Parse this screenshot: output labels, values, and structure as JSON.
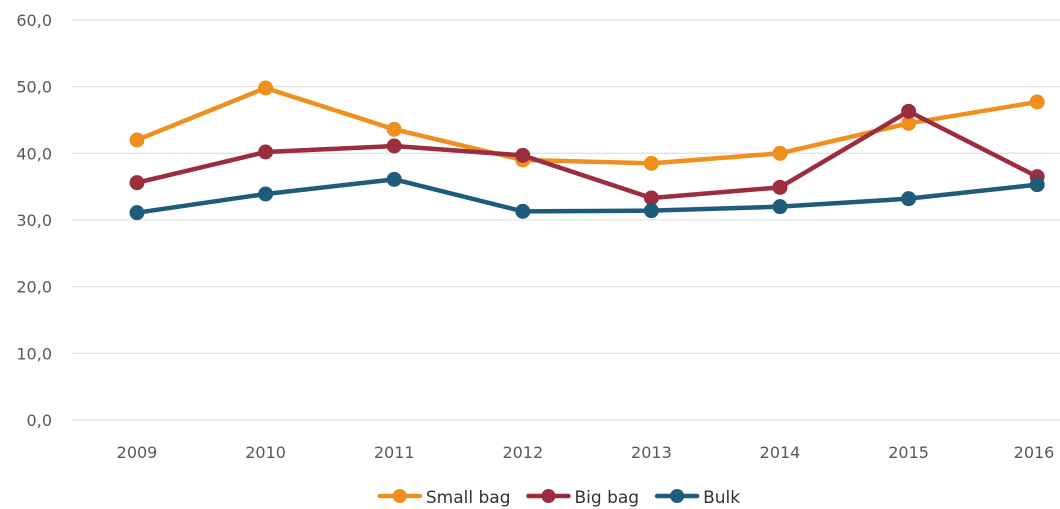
{
  "chart_data": {
    "type": "line",
    "title": "",
    "xlabel": "",
    "ylabel": "",
    "categories": [
      "2009",
      "2010",
      "2011",
      "2012",
      "2013",
      "2014",
      "2015",
      "2016"
    ],
    "y_tick_labels": [
      "0,0",
      "10,0",
      "20,0",
      "30,0",
      "40,0",
      "50,0",
      "60,0"
    ],
    "ylim": [
      0,
      60
    ],
    "grid": "horizontal",
    "legend_position": "bottom",
    "series": [
      {
        "name": "Small bag",
        "color": "#ee8f1e",
        "values": [
          42.0,
          49.8,
          43.6,
          39.0,
          38.5,
          40.0,
          44.5,
          47.7
        ]
      },
      {
        "name": "Big bag",
        "color": "#9b2d3f",
        "values": [
          35.6,
          40.2,
          41.1,
          39.7,
          33.3,
          34.9,
          46.3,
          36.5
        ]
      },
      {
        "name": "Bulk",
        "color": "#1f5c7c",
        "values": [
          31.1,
          33.9,
          36.1,
          31.3,
          31.4,
          32.0,
          33.2,
          35.3
        ]
      }
    ]
  }
}
